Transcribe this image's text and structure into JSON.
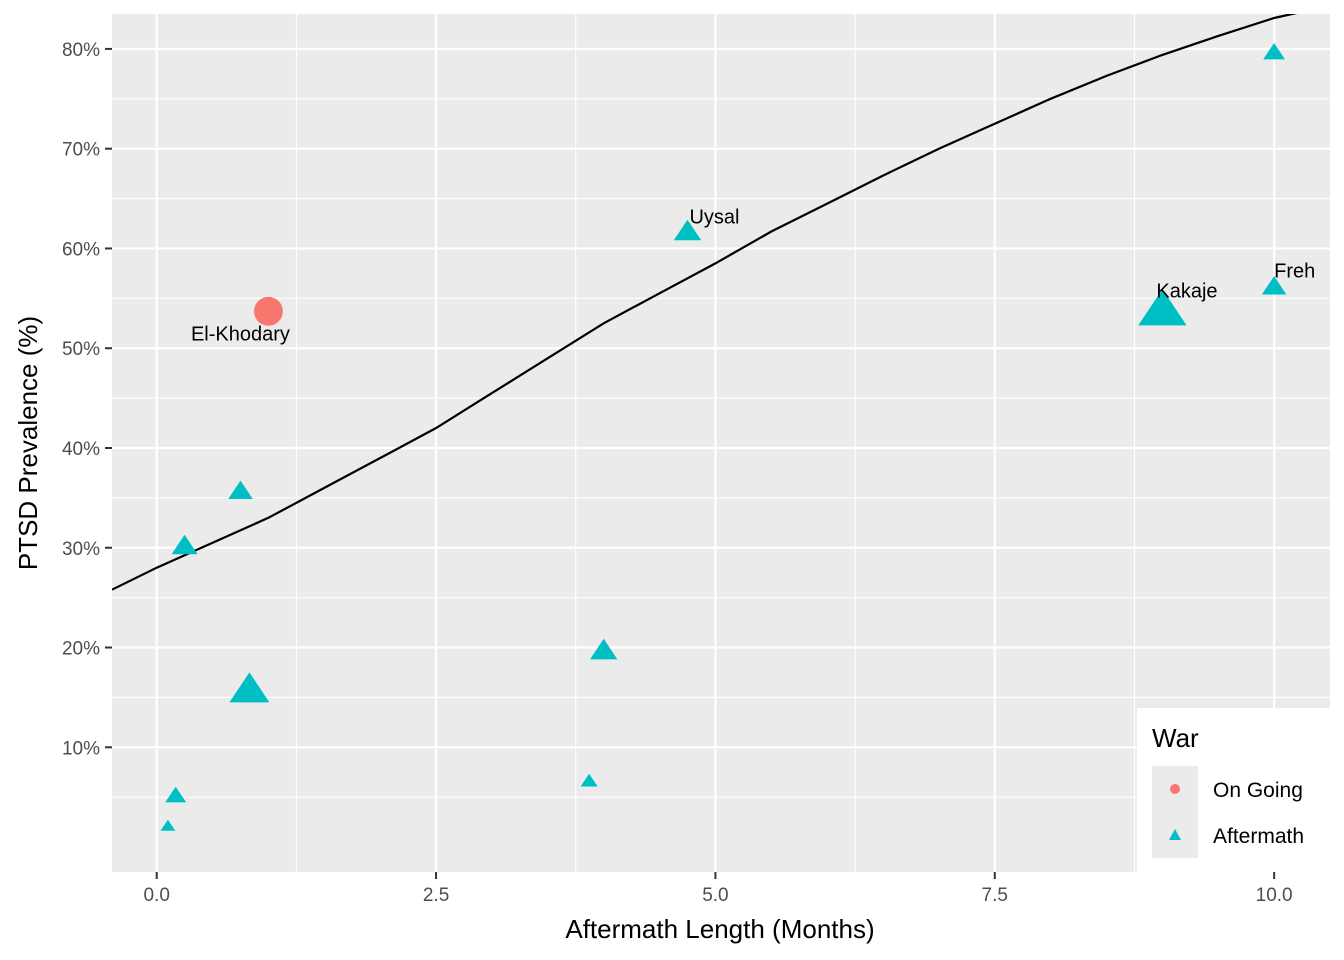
{
  "chart_data": {
    "type": "scatter",
    "title": "",
    "xlabel": "Aftermath Length (Months)",
    "ylabel": "PTSD Prevalence (%)",
    "xlim": [
      -0.4,
      10.5
    ],
    "ylim": [
      -2.5,
      83.5
    ],
    "grid": true,
    "x_ticks": [
      0.0,
      2.5,
      5.0,
      7.5,
      10.0
    ],
    "x_tick_labels": [
      "0.0",
      "2.5",
      "5.0",
      "7.5",
      "10.0"
    ],
    "y_ticks": [
      10,
      20,
      30,
      40,
      50,
      60,
      70,
      80
    ],
    "y_tick_labels": [
      "10%",
      "20%",
      "30%",
      "40%",
      "50%",
      "60%",
      "70%",
      "80%"
    ],
    "legend": {
      "title": "War",
      "position": "bottom-right",
      "entries": [
        "On Going",
        "Aftermath"
      ]
    },
    "series": [
      {
        "name": "On Going",
        "shape": "circle",
        "color": "#F8766D",
        "points": [
          {
            "x": 1.0,
            "y": 53.7,
            "size": 0.6,
            "label": "El-Khodary"
          }
        ]
      },
      {
        "name": "Aftermath",
        "shape": "triangle",
        "color": "#00BFC4",
        "points": [
          {
            "x": 0.1,
            "y": 2.0,
            "size": 0.1,
            "label": ""
          },
          {
            "x": 0.17,
            "y": 5.0,
            "size": 0.32,
            "label": ""
          },
          {
            "x": 0.25,
            "y": 30.0,
            "size": 0.5,
            "label": ""
          },
          {
            "x": 0.75,
            "y": 35.5,
            "size": 0.45,
            "label": ""
          },
          {
            "x": 0.83,
            "y": 15.5,
            "size": 1.0,
            "label": ""
          },
          {
            "x": 3.87,
            "y": 6.5,
            "size": 0.18,
            "label": ""
          },
          {
            "x": 4.0,
            "y": 19.5,
            "size": 0.55,
            "label": ""
          },
          {
            "x": 4.75,
            "y": 61.5,
            "size": 0.55,
            "label": "Uysal"
          },
          {
            "x": 9.0,
            "y": 53.5,
            "size": 1.3,
            "label": "Kakaje"
          },
          {
            "x": 10.0,
            "y": 56.0,
            "size": 0.45,
            "label": "Freh"
          },
          {
            "x": 10.0,
            "y": 79.5,
            "size": 0.35,
            "label": ""
          }
        ]
      }
    ],
    "fit_curve": {
      "color": "#000000",
      "points": [
        [
          -0.4,
          25.8
        ],
        [
          0.0,
          28.0
        ],
        [
          0.5,
          30.5
        ],
        [
          1.0,
          33.0
        ],
        [
          1.5,
          36.0
        ],
        [
          2.0,
          39.0
        ],
        [
          2.5,
          42.0
        ],
        [
          3.0,
          45.5
        ],
        [
          3.5,
          49.0
        ],
        [
          4.0,
          52.5
        ],
        [
          4.5,
          55.5
        ],
        [
          5.0,
          58.5
        ],
        [
          5.5,
          61.7
        ],
        [
          6.0,
          64.5
        ],
        [
          6.5,
          67.3
        ],
        [
          7.0,
          70.0
        ],
        [
          7.5,
          72.5
        ],
        [
          8.0,
          75.0
        ],
        [
          8.5,
          77.3
        ],
        [
          9.0,
          79.4
        ],
        [
          9.5,
          81.3
        ],
        [
          10.0,
          83.1
        ],
        [
          10.2,
          83.6
        ]
      ]
    }
  }
}
